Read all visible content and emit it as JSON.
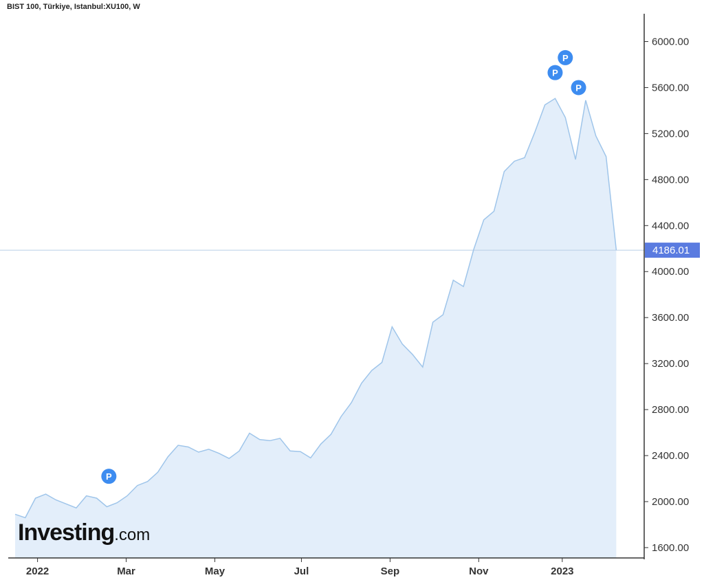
{
  "chart_data": {
    "type": "area",
    "title": "BIST 100, Türkiye, Istanbul:XU100, W",
    "x_tick_labels": [
      "2022",
      "Mar",
      "May",
      "Jul",
      "Sep",
      "Nov",
      "2023"
    ],
    "x_tick_index": [
      2.2,
      10.9,
      19.6,
      28.1,
      36.8,
      45.5,
      53.7
    ],
    "y_tick_labels": [
      "1600.00",
      "2000.00",
      "2400.00",
      "2800.00",
      "3200.00",
      "3600.00",
      "4000.00",
      "4400.00",
      "4800.00",
      "5200.00",
      "5600.00",
      "6000.00"
    ],
    "y_ticks": [
      1600,
      2000,
      2400,
      2800,
      3200,
      3600,
      4000,
      4400,
      4800,
      5200,
      5600,
      6000
    ],
    "ylim": [
      1510,
      6230
    ],
    "values": [
      1890,
      1860,
      2030,
      2065,
      2015,
      1980,
      1945,
      2050,
      2030,
      1955,
      1990,
      2050,
      2140,
      2175,
      2255,
      2390,
      2490,
      2475,
      2430,
      2455,
      2420,
      2375,
      2440,
      2595,
      2540,
      2530,
      2550,
      2440,
      2435,
      2380,
      2500,
      2585,
      2740,
      2860,
      3030,
      3140,
      3210,
      3520,
      3370,
      3280,
      3170,
      3560,
      3625,
      3925,
      3870,
      4190,
      4450,
      4525,
      4870,
      4960,
      4990,
      5210,
      5450,
      5505,
      5340,
      4975,
      5490,
      5180,
      5000,
      4186.01
    ],
    "last_price": 4186.01,
    "last_price_label": "4186.01",
    "markers": [
      {
        "label": "P",
        "index": 9.2,
        "value": 2220
      },
      {
        "label": "P",
        "index": 53.0,
        "value": 5730
      },
      {
        "label": "P",
        "index": 54.0,
        "value": 5860
      },
      {
        "label": "P",
        "index": 55.3,
        "value": 5600
      }
    ],
    "grid": false,
    "legend": "none",
    "colors": {
      "line": "#9fc5ea",
      "fill": "#e3eefa",
      "price_line": "#b8cfe6",
      "price_badge": "#5a7be0",
      "marker": "#3d8cf0",
      "axis": "#333333"
    }
  },
  "watermark": {
    "brand": "Investing",
    "suffix": ".com"
  }
}
